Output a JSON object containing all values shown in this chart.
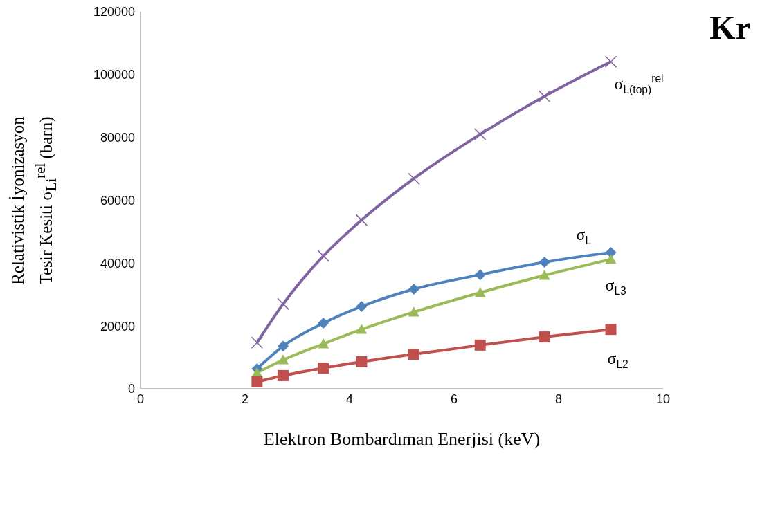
{
  "chart_data": {
    "type": "line",
    "title": "Kr",
    "xlabel": "Elektron Bombardıman Enerjisi (keV)",
    "ylabel": "Relativistik İyonizasyon\nTesir Kesiti σ$_{Li}$$^{rel}$ (barn)",
    "x": [
      2.23,
      2.73,
      3.5,
      4.23,
      5.23,
      6.5,
      7.73,
      9
    ],
    "series": [
      {
        "name": "σ$_{L(top)}$$^{rel}$",
        "color": "#8064a2",
        "marker": "cross",
        "values": [
          14700,
          27000,
          42300,
          53700,
          66900,
          81000,
          93100,
          104100
        ]
      },
      {
        "name": "σ$_{L}$",
        "color": "#4f81bd",
        "marker": "diamond",
        "values": [
          6400,
          13600,
          20900,
          26200,
          31700,
          36300,
          40300,
          43400
        ]
      },
      {
        "name": "σ$_{L3}$",
        "color": "#9bbb59",
        "marker": "triangle",
        "values": [
          5100,
          9200,
          14300,
          18900,
          24400,
          30600,
          36100,
          41200
        ]
      },
      {
        "name": "σ$_{L2}$",
        "color": "#c0504d",
        "marker": "square",
        "values": [
          2200,
          4200,
          6600,
          8600,
          11000,
          13900,
          16500,
          18900
        ]
      }
    ],
    "xlim": [
      0,
      10
    ],
    "xticks": [
      0,
      2,
      4,
      6,
      8,
      10
    ],
    "ylim": [
      0,
      120000
    ],
    "yticks": [
      0,
      20000,
      40000,
      60000,
      80000,
      100000,
      120000
    ],
    "line_style": "solid"
  }
}
